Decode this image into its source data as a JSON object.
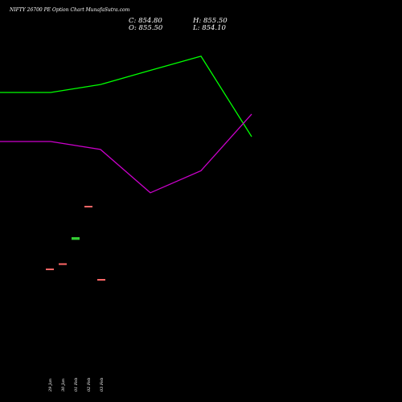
{
  "header": {
    "title": "NIFTY 26700  PE Option  Chart MunafaSutra.com",
    "close": "C: 854.80",
    "high": "H: 855.50",
    "open": "O: 855.50",
    "low": "L: 854.10"
  },
  "colors": {
    "background": "#000000",
    "upper_band": "#00ff00",
    "lower_band": "#cc00cc",
    "bull_candle": "#33cc33",
    "bear_candle": "#ff6666"
  },
  "chart_data": {
    "type": "line",
    "series": [
      {
        "x": [
          0,
          1,
          2,
          3,
          4,
          5
        ],
        "values": [
          0.0,
          0.0,
          1.8,
          5.0,
          8.2,
          -10.0
        ]
      },
      {
        "x": [
          0,
          1,
          2,
          3,
          4,
          5
        ],
        "values": [
          0.0,
          0.0,
          -1.8,
          -11.6,
          -6.6,
          6.2
        ]
      }
    ],
    "candles": [
      {
        "date": "29 Jan",
        "open": 855.2,
        "close": 855.2,
        "color": "bear"
      },
      {
        "date": "30 Jan",
        "open": 855.4,
        "close": 855.4,
        "color": "bear"
      },
      {
        "date": "01 Feb",
        "open": 856.4,
        "close": 856.3,
        "color": "bull"
      },
      {
        "date": "02 Feb",
        "open": 857.6,
        "close": 857.6,
        "color": "bear"
      },
      {
        "date": "03 Feb",
        "open": 854.8,
        "close": 854.8,
        "color": "bear"
      }
    ],
    "xlabels": [
      "29 Jan",
      "30 Jan",
      "01 Feb",
      "02 Feb",
      "03 Feb"
    ]
  }
}
